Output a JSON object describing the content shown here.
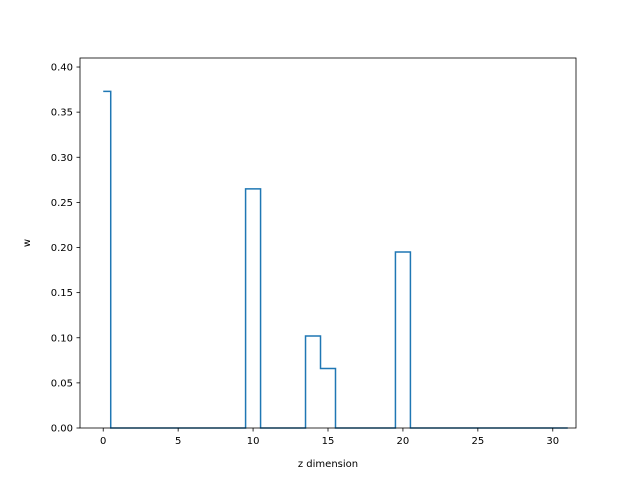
{
  "chart_data": {
    "type": "line",
    "drawstyle": "steps-mid",
    "title": "",
    "xlabel": "z dimension",
    "ylabel": "w",
    "xlim": [
      -1.55,
      31.55
    ],
    "ylim": [
      0.0,
      0.41
    ],
    "xticks": [
      0,
      5,
      10,
      15,
      20,
      25,
      30
    ],
    "xtick_labels": [
      "0",
      "5",
      "10",
      "15",
      "20",
      "25",
      "30"
    ],
    "yticks": [
      0.0,
      0.05,
      0.1,
      0.15,
      0.2,
      0.25,
      0.3,
      0.35,
      0.4
    ],
    "ytick_labels": [
      "0.00",
      "0.05",
      "0.10",
      "0.15",
      "0.20",
      "0.25",
      "0.30",
      "0.35",
      "0.40"
    ],
    "grid": false,
    "legend": "none",
    "series": [
      {
        "color": "#1f77b4",
        "x": [
          0,
          1,
          2,
          3,
          4,
          5,
          6,
          7,
          8,
          9,
          10,
          11,
          12,
          13,
          14,
          15,
          16,
          17,
          18,
          19,
          20,
          21,
          22,
          23,
          24,
          25,
          26,
          27,
          28,
          29,
          30,
          31
        ],
        "y": [
          0.373,
          0,
          0,
          0,
          0,
          0,
          0,
          0,
          0,
          0,
          0.265,
          0,
          0,
          0,
          0.102,
          0.066,
          0,
          0,
          0,
          0,
          0.195,
          0,
          0,
          0,
          0,
          0,
          0,
          0,
          0,
          0,
          0,
          0
        ]
      }
    ]
  }
}
